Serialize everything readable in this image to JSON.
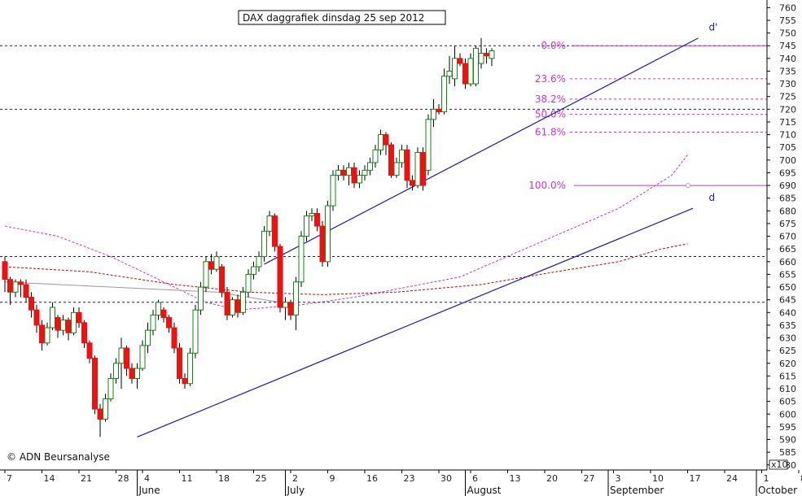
{
  "chart_data": {
    "type": "candlestick",
    "title": "DAX daggrafiek dinsdag 25 sep 2012",
    "copyright": "© ADN Beursanalyse",
    "y_axis": {
      "ylim": [
        578,
        763
      ],
      "tick_step": 5,
      "first_tick": 580,
      "last_tick": 760,
      "scale_label": "x10",
      "position": "right"
    },
    "x_axis": {
      "day_labels": [
        "7",
        "14",
        "21",
        "28",
        "4",
        "11",
        "18",
        "25",
        "2",
        "9",
        "16",
        "23",
        "30",
        "6",
        "13",
        "20",
        "27",
        "3",
        "10",
        "17",
        "24",
        "1",
        "8"
      ],
      "month_labels": [
        "June",
        "July",
        "August",
        "September",
        "October"
      ]
    },
    "fibonacci": [
      {
        "label": "0.0%",
        "value": 745
      },
      {
        "label": "23.6%",
        "value": 732
      },
      {
        "label": "38.2%",
        "value": 724
      },
      {
        "label": "50.0%",
        "value": 718
      },
      {
        "label": "61.8%",
        "value": 711
      },
      {
        "label": "100.0%",
        "value": 690
      }
    ],
    "horizontal_levels": [
      745,
      720,
      662,
      644
    ],
    "channel_labels": {
      "upper": "d'",
      "lower": "d"
    },
    "candles": [
      [
        660,
        653,
        662,
        648
      ],
      [
        653,
        648,
        654,
        643
      ],
      [
        648,
        652,
        653,
        646
      ],
      [
        652,
        651,
        653,
        646
      ],
      [
        651,
        646,
        653,
        644
      ],
      [
        646,
        641,
        648,
        638
      ],
      [
        641,
        635,
        643,
        632
      ],
      [
        635,
        628,
        637,
        625
      ],
      [
        628,
        634,
        636,
        627
      ],
      [
        634,
        642,
        644,
        633
      ],
      [
        638,
        633,
        639,
        630
      ],
      [
        633,
        637,
        639,
        631
      ],
      [
        637,
        632,
        638,
        629
      ],
      [
        632,
        640,
        642,
        631
      ],
      [
        640,
        636,
        642,
        634
      ],
      [
        636,
        628,
        637,
        626
      ],
      [
        628,
        622,
        629,
        620
      ],
      [
        622,
        602,
        623,
        600
      ],
      [
        602,
        598,
        604,
        591
      ],
      [
        598,
        606,
        608,
        597
      ],
      [
        606,
        614,
        616,
        605
      ],
      [
        614,
        620,
        622,
        612
      ],
      [
        620,
        626,
        630,
        610
      ],
      [
        626,
        618,
        627,
        615
      ],
      [
        618,
        614,
        620,
        612
      ],
      [
        614,
        618,
        620,
        610
      ],
      [
        618,
        627,
        629,
        617
      ],
      [
        627,
        633,
        636,
        624
      ],
      [
        633,
        639,
        641,
        631
      ],
      [
        639,
        644,
        645,
        637
      ],
      [
        641,
        638,
        642,
        636
      ],
      [
        638,
        634,
        639,
        632
      ],
      [
        634,
        626,
        636,
        624
      ],
      [
        626,
        614,
        628,
        612
      ],
      [
        614,
        612,
        616,
        610
      ],
      [
        612,
        624,
        626,
        611
      ],
      [
        624,
        641,
        643,
        622
      ],
      [
        641,
        650,
        652,
        639
      ],
      [
        650,
        660,
        662,
        648
      ],
      [
        660,
        657,
        663,
        655
      ],
      [
        657,
        662,
        664,
        656
      ],
      [
        658,
        648,
        659,
        646
      ],
      [
        648,
        639,
        650,
        637
      ],
      [
        639,
        645,
        646,
        638
      ],
      [
        645,
        640,
        647,
        638
      ],
      [
        640,
        648,
        650,
        639
      ],
      [
        648,
        655,
        657,
        646
      ],
      [
        655,
        658,
        660,
        653
      ],
      [
        658,
        662,
        664,
        656
      ],
      [
        662,
        672,
        674,
        660
      ],
      [
        672,
        678,
        680,
        670
      ],
      [
        678,
        666,
        679,
        664
      ],
      [
        666,
        642,
        667,
        640
      ],
      [
        642,
        644,
        646,
        637
      ],
      [
        644,
        639,
        645,
        637
      ],
      [
        639,
        652,
        654,
        633
      ],
      [
        652,
        670,
        672,
        650
      ],
      [
        670,
        678,
        680,
        668
      ],
      [
        678,
        679,
        681,
        676
      ],
      [
        679,
        674,
        681,
        672
      ],
      [
        674,
        660,
        676,
        658
      ],
      [
        660,
        682,
        684,
        658
      ],
      [
        682,
        694,
        696,
        680
      ],
      [
        694,
        696,
        698,
        692
      ],
      [
        696,
        694,
        698,
        692
      ],
      [
        694,
        697,
        699,
        690
      ],
      [
        697,
        691,
        699,
        689
      ],
      [
        691,
        694,
        696,
        689
      ],
      [
        694,
        696,
        698,
        692
      ],
      [
        696,
        699,
        701,
        694
      ],
      [
        699,
        704,
        706,
        697
      ],
      [
        704,
        710,
        712,
        702
      ],
      [
        710,
        706,
        711,
        702
      ],
      [
        706,
        694,
        707,
        693
      ],
      [
        694,
        699,
        701,
        693
      ],
      [
        699,
        704,
        706,
        697
      ],
      [
        704,
        692,
        706,
        689
      ],
      [
        692,
        690,
        694,
        688
      ],
      [
        690,
        703,
        705,
        689
      ],
      [
        703,
        690,
        705,
        688
      ],
      [
        696,
        716,
        718,
        694
      ],
      [
        716,
        720,
        724,
        713
      ],
      [
        720,
        719,
        722,
        718
      ],
      [
        719,
        733,
        736,
        718
      ],
      [
        733,
        735,
        741,
        730
      ],
      [
        732,
        740,
        745,
        729
      ],
      [
        740,
        738,
        742,
        737
      ],
      [
        738,
        730,
        740,
        728
      ],
      [
        730,
        740,
        742,
        729
      ],
      [
        730,
        744,
        745,
        729
      ],
      [
        738,
        742,
        748,
        736
      ],
      [
        742,
        741,
        744,
        738
      ],
      [
        740,
        743,
        744,
        737
      ]
    ]
  }
}
